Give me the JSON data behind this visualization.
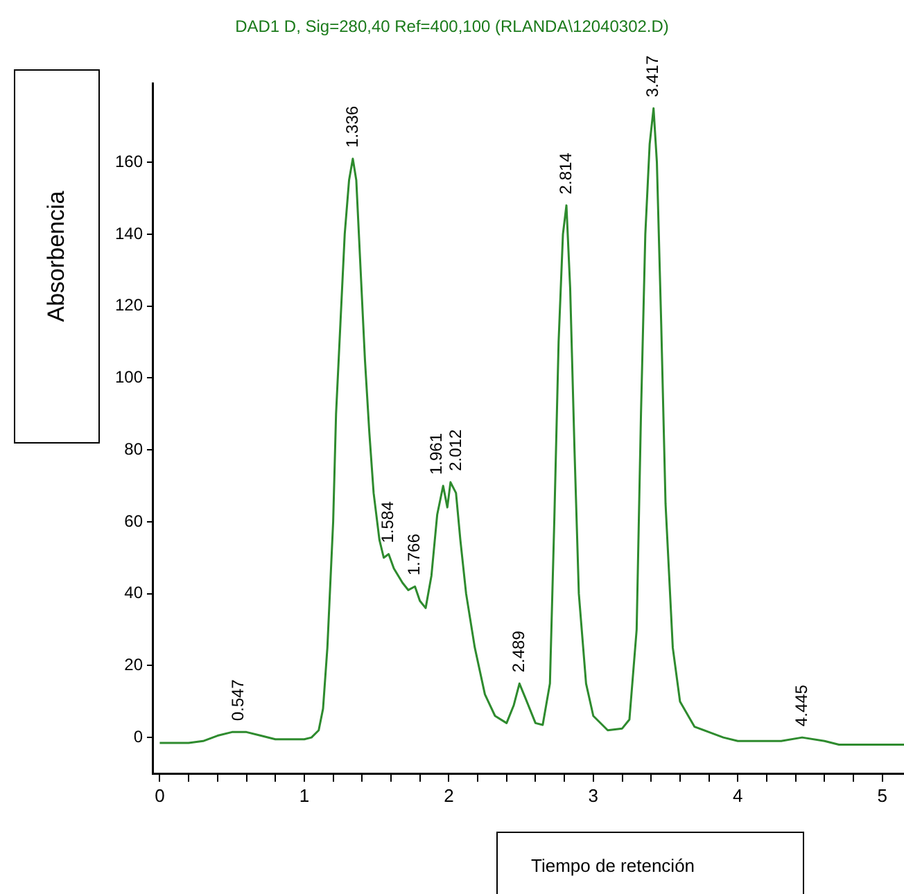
{
  "chart_data": {
    "type": "line",
    "title": "DAD1 D, Sig=280,40 Ref=400,100 (RLANDA\\12040302.D)",
    "xlabel": "Tiempo de retención",
    "ylabel": "Absorbencia",
    "x": [
      0,
      0.2,
      0.3,
      0.4,
      0.5,
      0.6,
      0.7,
      0.8,
      0.9,
      1.0,
      1.05,
      1.1,
      1.13,
      1.16,
      1.2,
      1.22,
      1.25,
      1.28,
      1.31,
      1.336,
      1.36,
      1.39,
      1.42,
      1.45,
      1.48,
      1.52,
      1.55,
      1.584,
      1.62,
      1.68,
      1.72,
      1.766,
      1.8,
      1.84,
      1.88,
      1.92,
      1.961,
      1.99,
      2.012,
      2.05,
      2.08,
      2.12,
      2.18,
      2.25,
      2.32,
      2.4,
      2.45,
      2.489,
      2.53,
      2.6,
      2.65,
      2.7,
      2.73,
      2.76,
      2.79,
      2.814,
      2.84,
      2.87,
      2.9,
      2.95,
      3.0,
      3.1,
      3.2,
      3.25,
      3.3,
      3.33,
      3.36,
      3.39,
      3.417,
      3.44,
      3.47,
      3.5,
      3.55,
      3.6,
      3.7,
      3.8,
      3.9,
      4.0,
      4.3,
      4.445,
      4.6,
      4.7,
      5.15
    ],
    "series": [
      {
        "color": "#2e8b2e",
        "values": [
          -1.5,
          -1.5,
          -1,
          0.5,
          1.5,
          1.5,
          0.5,
          -0.5,
          -0.5,
          -0.5,
          0,
          2,
          8,
          25,
          60,
          90,
          115,
          140,
          155,
          161,
          155,
          130,
          105,
          85,
          68,
          55,
          50,
          51,
          47,
          43,
          41,
          42,
          38,
          36,
          45,
          62,
          70,
          64,
          71,
          68,
          55,
          40,
          25,
          12,
          6,
          4,
          9,
          15,
          11,
          4,
          3.5,
          15,
          60,
          110,
          140,
          148,
          125,
          80,
          40,
          15,
          6,
          2,
          2.5,
          5,
          30,
          90,
          140,
          165,
          175,
          160,
          115,
          65,
          25,
          10,
          3,
          1.5,
          0,
          -1,
          -1,
          0,
          -1,
          -2,
          -2
        ]
      }
    ],
    "xlim": [
      -0.05,
      5.15
    ],
    "ylim": [
      -10,
      182
    ],
    "xticks": [
      0,
      {
        "value": 0.2,
        "label": null
      },
      {
        "value": 0.4,
        "label": null
      },
      {
        "value": 0.6,
        "label": null
      },
      {
        "value": 0.8,
        "label": null
      },
      1,
      {
        "value": 1.2,
        "label": null
      },
      {
        "value": 1.4,
        "label": null
      },
      {
        "value": 1.6,
        "label": null
      },
      {
        "value": 1.8,
        "label": null
      },
      2,
      {
        "value": 2.2,
        "label": null
      },
      {
        "value": 2.4,
        "label": null
      },
      {
        "value": 2.6,
        "label": null
      },
      {
        "value": 2.8,
        "label": null
      },
      3,
      {
        "value": 3.2,
        "label": null
      },
      {
        "value": 3.4,
        "label": null
      },
      {
        "value": 3.6,
        "label": null
      },
      {
        "value": 3.8,
        "label": null
      },
      4,
      {
        "value": 4.2,
        "label": null
      },
      {
        "value": 4.4,
        "label": null
      },
      {
        "value": 4.6,
        "label": null
      },
      {
        "value": 4.8,
        "label": null
      },
      5
    ],
    "yticks": [
      0,
      20,
      40,
      60,
      80,
      100,
      120,
      140,
      160
    ],
    "annotations": [
      {
        "text": "0.547",
        "x": 0.547,
        "y": 1.5
      },
      {
        "text": "1.336",
        "x": 1.336,
        "y": 161
      },
      {
        "text": "1.584",
        "x": 1.584,
        "y": 51
      },
      {
        "text": "1.766",
        "x": 1.766,
        "y": 42
      },
      {
        "text": "1.961",
        "x": 1.961,
        "y": 70
      },
      {
        "text": "2.012",
        "x": 2.012,
        "y": 71
      },
      {
        "text": "2.489",
        "x": 2.489,
        "y": 15
      },
      {
        "text": "2.814",
        "x": 2.814,
        "y": 148
      },
      {
        "text": "3.417",
        "x": 3.417,
        "y": 175
      },
      {
        "text": "4.445",
        "x": 4.445,
        "y": 0
      }
    ]
  }
}
